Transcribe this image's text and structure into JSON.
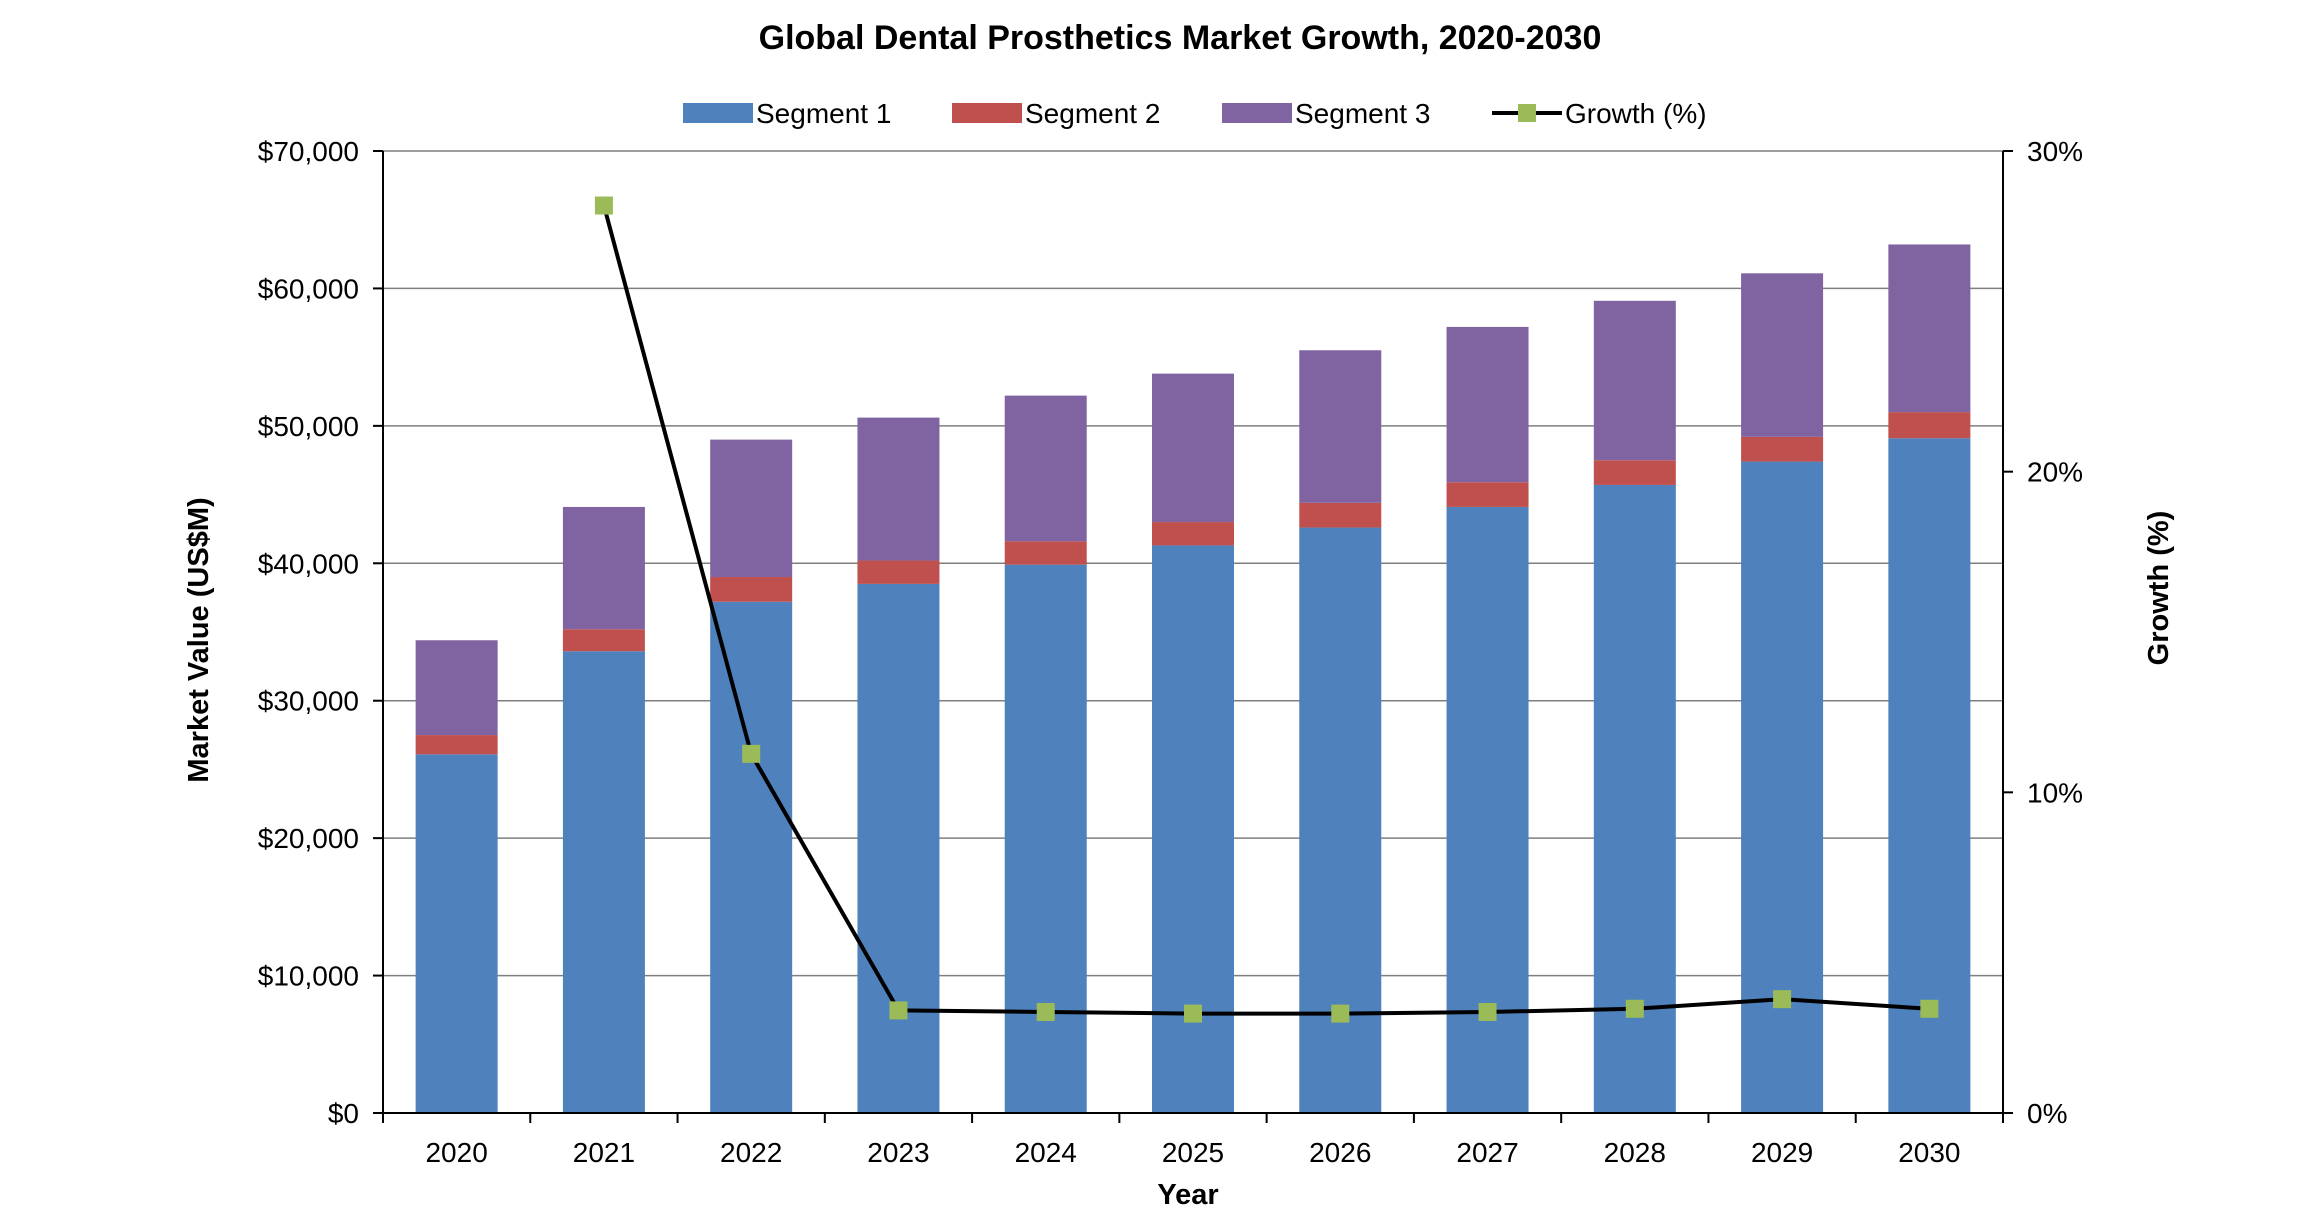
{
  "chart_data": {
    "type": "bar",
    "stacked": true,
    "title": "Global Dental Prosthetics Market Growth, 2020-2030",
    "xlabel": "Year",
    "ylabel": "Market Value (US$M)",
    "y2label": "Growth (%)",
    "categories": [
      "2020",
      "2021",
      "2022",
      "2023",
      "2024",
      "2025",
      "2026",
      "2027",
      "2028",
      "2029",
      "2030"
    ],
    "ylim": [
      0,
      70000
    ],
    "y2lim": [
      0,
      30
    ],
    "yticks": [
      0,
      10000,
      20000,
      30000,
      40000,
      50000,
      60000,
      70000
    ],
    "ytick_labels": [
      "$0",
      "$10,000",
      "$20,000",
      "$30,000",
      "$40,000",
      "$50,000",
      "$60,000",
      "$70,000"
    ],
    "y2ticks": [
      0,
      10,
      20,
      30
    ],
    "y2tick_labels": [
      "0%",
      "10%",
      "20%",
      "30%"
    ],
    "grid": true,
    "legend_position": "top",
    "series": [
      {
        "name": "Segment 1",
        "kind": "bar",
        "color": "#4F81BD",
        "values": [
          26100,
          33600,
          37200,
          38500,
          39900,
          41300,
          42600,
          44100,
          45700,
          47400,
          49100
        ]
      },
      {
        "name": "Segment 2",
        "kind": "bar",
        "color": "#C0504D",
        "values": [
          1400,
          1600,
          1800,
          1700,
          1700,
          1700,
          1800,
          1800,
          1800,
          1800,
          1900
        ]
      },
      {
        "name": "Segment 3",
        "kind": "bar",
        "color": "#8064A2",
        "values": [
          6900,
          8900,
          10000,
          10400,
          10600,
          10800,
          11100,
          11300,
          11600,
          11900,
          12200
        ]
      },
      {
        "name": "Growth (%)",
        "kind": "line",
        "axis": "right",
        "color": "#000000",
        "marker_color": "#9BBB59",
        "values": [
          null,
          28.3,
          11.2,
          3.2,
          3.15,
          3.1,
          3.1,
          3.15,
          3.25,
          3.55,
          3.25
        ]
      }
    ]
  }
}
